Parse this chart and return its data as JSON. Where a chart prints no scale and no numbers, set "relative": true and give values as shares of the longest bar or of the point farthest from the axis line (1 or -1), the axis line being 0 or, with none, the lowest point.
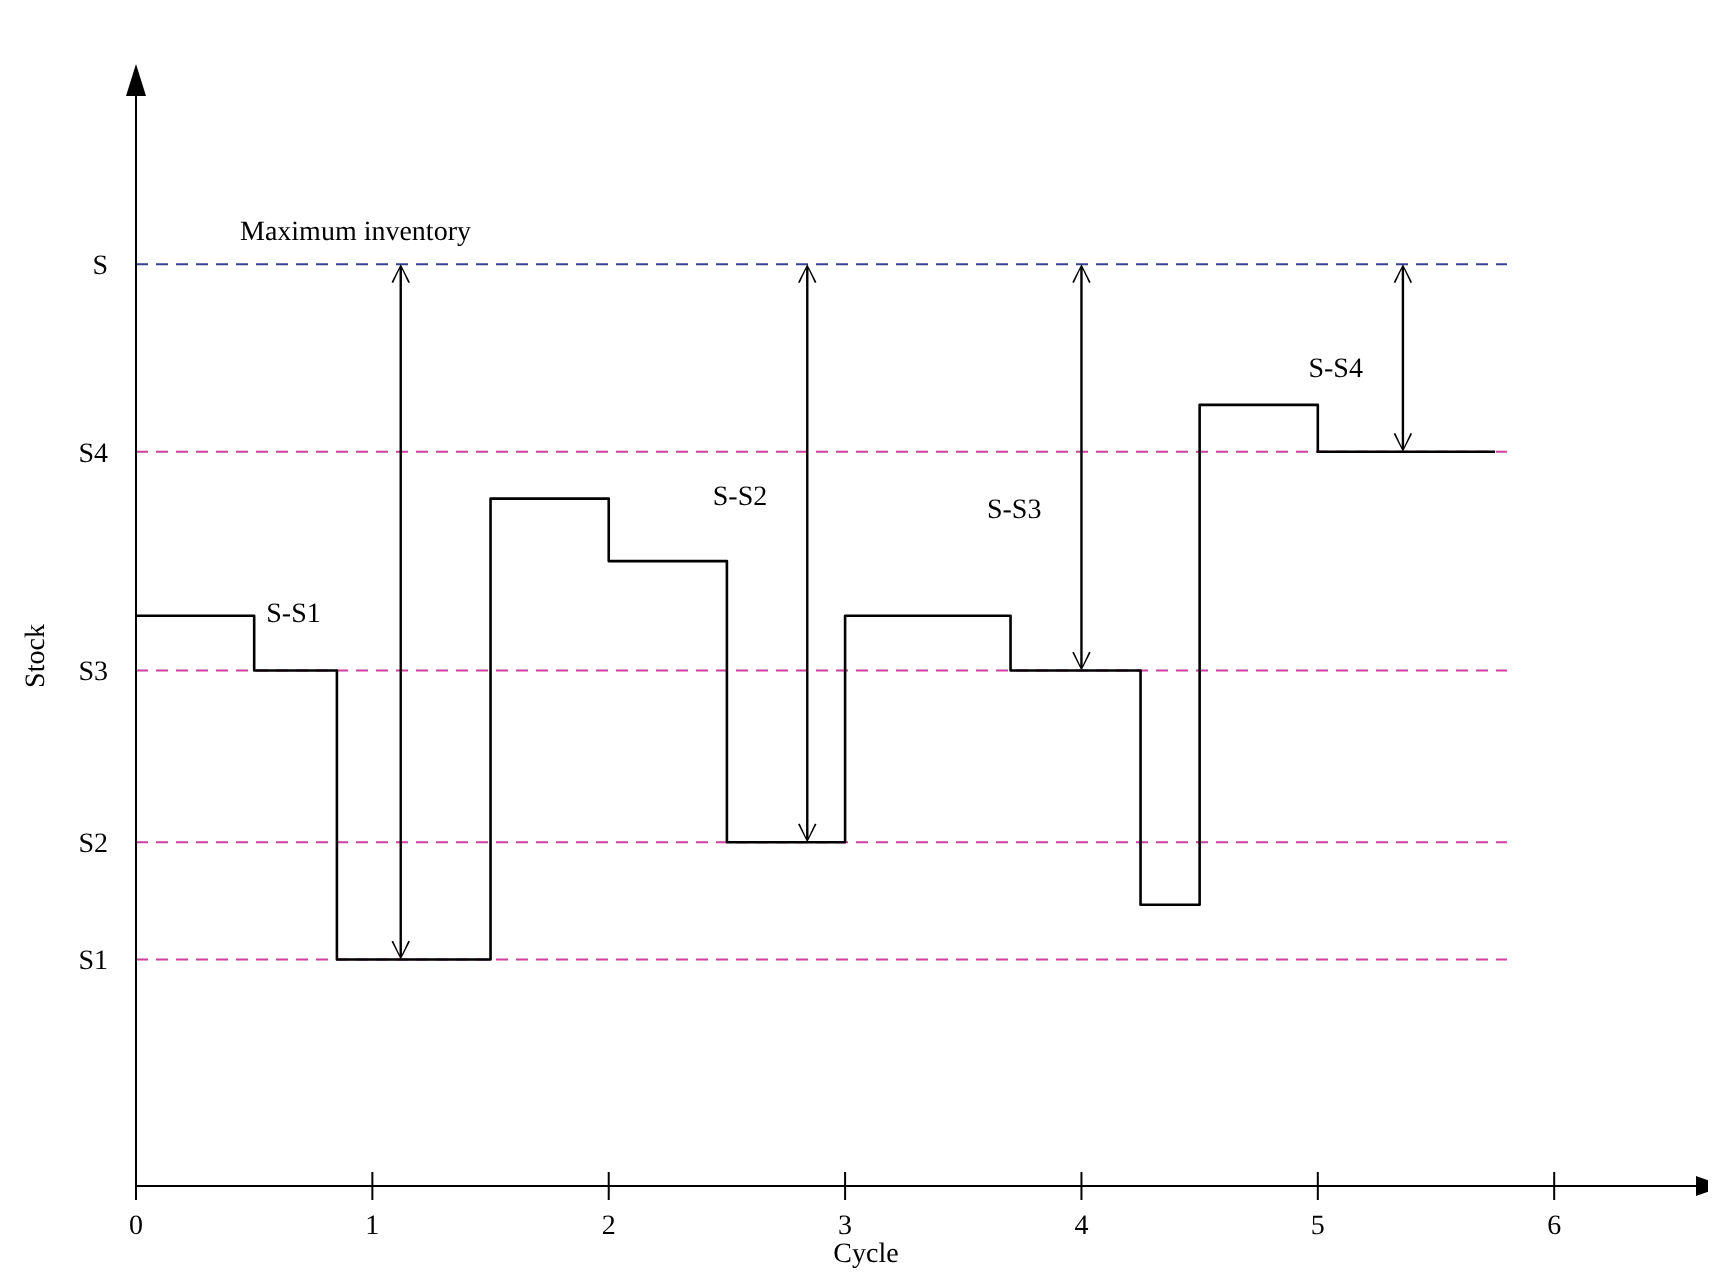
{
  "chart_data": {
    "type": "step",
    "xlabel": "Cycle",
    "ylabel": "Stock",
    "relative": true,
    "x": [
      0,
      0.5,
      0.85,
      1.5,
      2,
      2.5,
      3,
      3.7,
      4.25,
      4.5,
      5,
      5.75
    ],
    "series": [
      {
        "color": "#000000",
        "values": [
          0.73,
          0.66,
          0.29,
          0.88,
          0.8,
          0.44,
          0.73,
          0.66,
          0.36,
          1,
          0.94,
          0.94
        ]
      }
    ],
    "xlim": [
      0,
      6.6
    ],
    "xticks": [
      0,
      1,
      2,
      3,
      4,
      5,
      6
    ],
    "ref_lines": [
      {
        "axis": "y",
        "value": 1.18,
        "label": "S",
        "color": "#3a3f8f",
        "line_style": "dashed"
      },
      {
        "axis": "y",
        "value": 0.94,
        "label": "S4",
        "color": "#d03f9f",
        "line_style": "dashed"
      },
      {
        "axis": "y",
        "value": 0.66,
        "label": "S3",
        "color": "#d03f9f",
        "line_style": "dashed"
      },
      {
        "axis": "y",
        "value": 0.44,
        "label": "S2",
        "color": "#d03f9f",
        "line_style": "dashed"
      },
      {
        "axis": "y",
        "value": 0.29,
        "label": "S1",
        "color": "#d03f9f",
        "line_style": "dashed"
      }
    ],
    "annotations": [
      "Maximum inventory",
      "S-S1",
      "S-S2",
      "S-S3",
      "S-S4"
    ],
    "line_style": "solid"
  }
}
